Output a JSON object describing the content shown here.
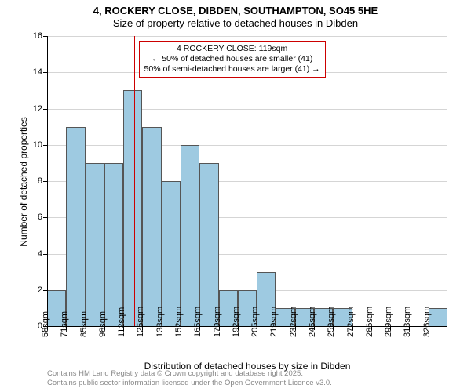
{
  "title_main": "4, ROCKERY CLOSE, DIBDEN, SOUTHAMPTON, SO45 5HE",
  "title_sub": "Size of property relative to detached houses in Dibden",
  "ylabel": "Number of detached properties",
  "xlabel": "Distribution of detached houses by size in Dibden",
  "attribution1": "Contains HM Land Registry data © Crown copyright and database right 2025.",
  "attribution2": "Contains public sector information licensed under the Open Government Licence v3.0.",
  "annotation": {
    "line1": "4 ROCKERY CLOSE: 119sqm",
    "line2": "← 50% of detached houses are smaller (41)",
    "line3": "50% of semi-detached houses are larger (41) →",
    "border_color": "#cc0000"
  },
  "ref_line": {
    "x_value": 119,
    "color": "#cc0000"
  },
  "chart": {
    "type": "histogram",
    "ylim": [
      0,
      16
    ],
    "ytick_step": 2,
    "x_start": 58,
    "x_bin_width": 13.4,
    "bar_fill": "#9ecae1",
    "bar_stroke": "#555555",
    "grid_color": "#888888",
    "background": "#ffffff",
    "values": [
      2,
      11,
      9,
      9,
      13,
      11,
      8,
      10,
      9,
      2,
      2,
      3,
      1,
      1,
      1,
      1,
      0,
      0,
      0,
      0,
      1
    ],
    "xtick_labels": [
      "58sqm",
      "71sqm",
      "85sqm",
      "98sqm",
      "112sqm",
      "125sqm",
      "138sqm",
      "152sqm",
      "165sqm",
      "179sqm",
      "192sqm",
      "205sqm",
      "219sqm",
      "232sqm",
      "246sqm",
      "259sqm",
      "272sqm",
      "286sqm",
      "299sqm",
      "313sqm",
      "326sqm"
    ]
  }
}
